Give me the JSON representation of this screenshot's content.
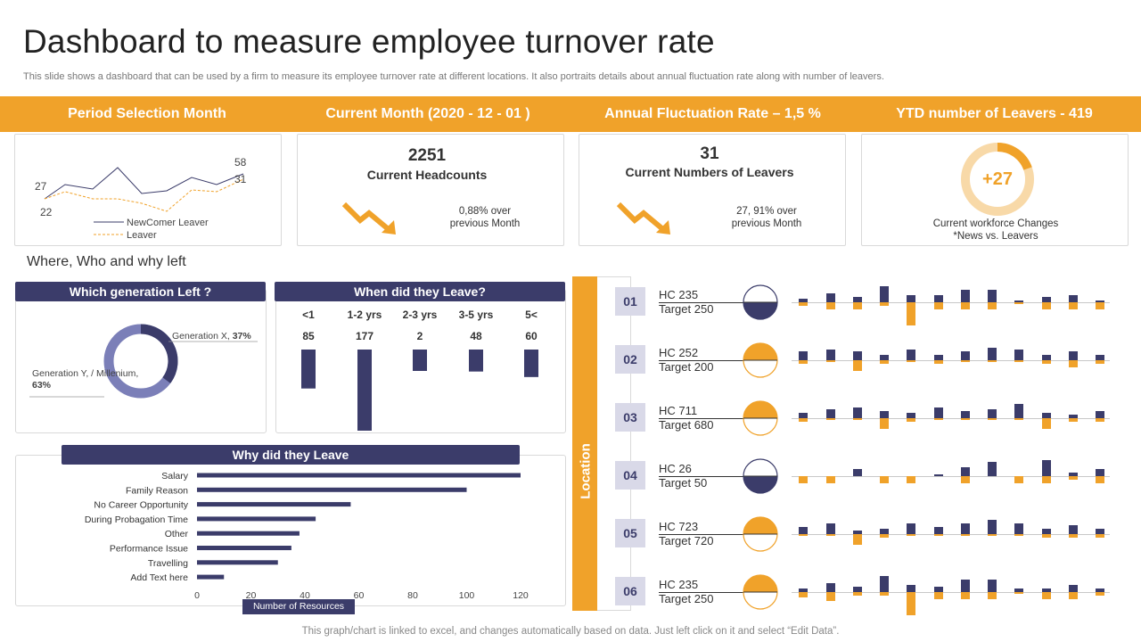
{
  "header": {
    "title": "Dashboard to measure employee turnover rate",
    "subtitle": "This slide shows a dashboard that can be used by a firm to measure its employee turnover rate at different locations. It also portraits details about annual fluctuation rate along with number of leavers."
  },
  "band": {
    "items": [
      "Period Selection Month",
      "Current Month (2020 - 12 - 01 )",
      "Annual Fluctuation Rate – 1,5 %",
      "YTD number of Leavers - 419"
    ]
  },
  "colors": {
    "orange": "#f0a22a",
    "navy": "#3b3c6a",
    "light_orange": "#f8d9a8",
    "light_purple": "#7b7fb8"
  },
  "trend_chart": {
    "labels": {
      "start_newcomer": "27",
      "start_leaver": "22",
      "end_newcomer": "58",
      "end_leaver": "31"
    },
    "legend": {
      "newcomer": "NewComer  Leaver",
      "leaver": "Leaver"
    }
  },
  "kpis": {
    "headcount": {
      "value": "2251",
      "label": "Current Headcounts",
      "change": "0,88% over previous Month"
    },
    "leavers": {
      "value": "31",
      "label": "Current Numbers of Leavers",
      "change": "27, 91% over previous Month"
    },
    "workforce": {
      "value": "+27",
      "label": "Current workforce Changes",
      "sublabel": "*News vs. Leavers"
    }
  },
  "section": {
    "where_who_why": "Where, Who and why left"
  },
  "generation": {
    "title": "Which generation Left ?",
    "gen_x_label": "Generation X, ",
    "gen_x_value": "37%",
    "gen_y_label": "Generation Y, / Millenium, ",
    "gen_y_value": "63%"
  },
  "when_left": {
    "title": "When did they Leave?",
    "columns": [
      {
        "label": "<1",
        "value": "85"
      },
      {
        "label": "1-2 yrs",
        "value": "177"
      },
      {
        "label": "2-3 yrs",
        "value": "2"
      },
      {
        "label": "3-5 yrs",
        "value": "48"
      },
      {
        "label": "5<",
        "value": "60"
      }
    ]
  },
  "chart_data": {
    "type": "bar",
    "orientation": "horizontal",
    "title": "Why did they Leave",
    "xlabel": "Number of Resources",
    "categories": [
      "Salary",
      "Family Reason",
      "No Career Opportunity",
      "During Probagation Time",
      "Other",
      "Performance Issue",
      "Travelling",
      "Add Text here"
    ],
    "values": [
      120,
      100,
      57,
      44,
      38,
      35,
      30,
      10
    ],
    "xlim": [
      0,
      120
    ],
    "xticks": [
      "0",
      "20",
      "40",
      "60",
      "80",
      "100",
      "120"
    ]
  },
  "location": {
    "label": "Location",
    "rows": [
      {
        "num": "01",
        "hc": "HC 235",
        "target": "Target  250",
        "fill": "navy"
      },
      {
        "num": "02",
        "hc": "HC 252",
        "target": "Target  200",
        "fill": "orange"
      },
      {
        "num": "03",
        "hc": "HC 711",
        "target": "Target  680",
        "fill": "orange"
      },
      {
        "num": "04",
        "hc": "HC 26",
        "target": "Target  50",
        "fill": "navy"
      },
      {
        "num": "05",
        "hc": "HC 723",
        "target": "Target  720",
        "fill": "orange"
      },
      {
        "num": "06",
        "hc": "HC 235",
        "target": "Target  250",
        "fill": "orange"
      }
    ]
  },
  "footer": "This graph/chart is linked to excel,  and changes automatically based on data. Just left click on it and select “Edit Data”."
}
